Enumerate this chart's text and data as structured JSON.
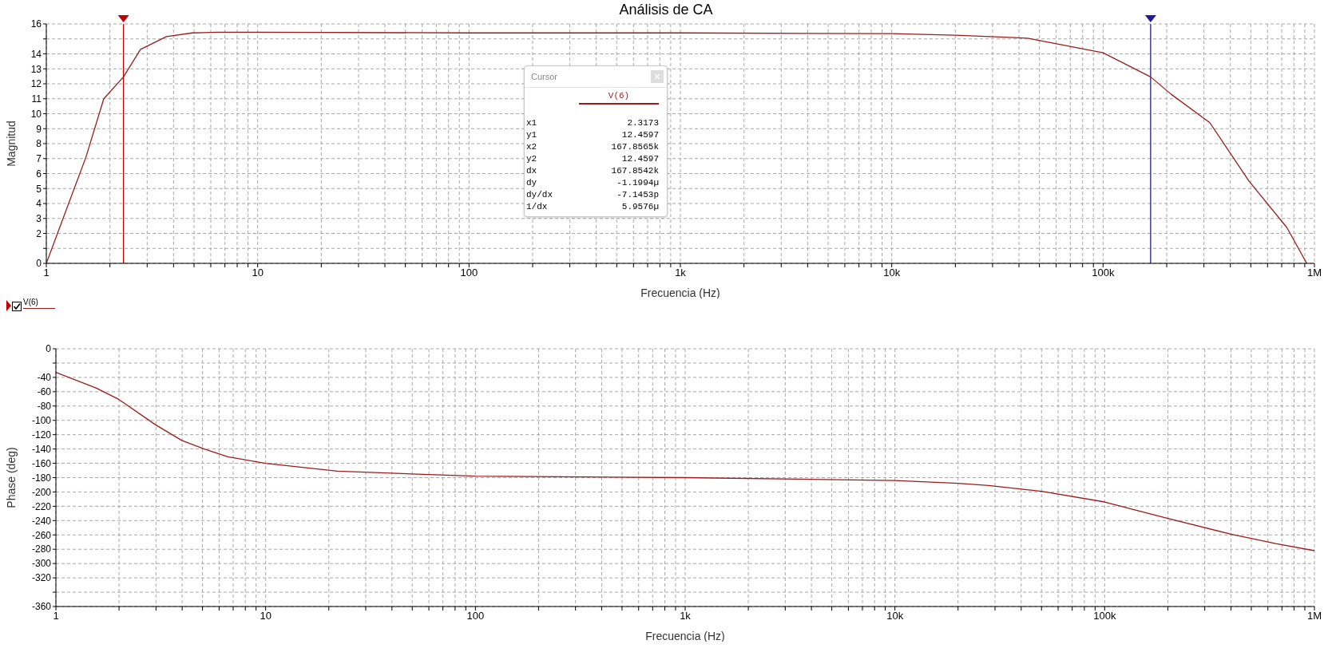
{
  "chart_data": [
    {
      "type": "line",
      "title": "Análisis de CA",
      "xlabel": "Frecuencia (Hz)",
      "ylabel": "Magnitud",
      "log": "x",
      "grid": true,
      "legend": "top",
      "line_style": "solid",
      "marker": "none",
      "xlim": [
        1,
        1000000
      ],
      "xticks": [
        {
          "value": 1,
          "label": "1"
        },
        {
          "value": 2,
          "label": null
        },
        {
          "value": 3,
          "label": null
        },
        {
          "value": 4,
          "label": null
        },
        {
          "value": 5,
          "label": null
        },
        {
          "value": 6,
          "label": null
        },
        {
          "value": 7,
          "label": null
        },
        {
          "value": 8,
          "label": null
        },
        {
          "value": 9,
          "label": null
        },
        {
          "value": 10,
          "label": "10"
        },
        {
          "value": 20,
          "label": null
        },
        {
          "value": 30,
          "label": null
        },
        {
          "value": 40,
          "label": null
        },
        {
          "value": 50,
          "label": null
        },
        {
          "value": 60,
          "label": null
        },
        {
          "value": 70,
          "label": null
        },
        {
          "value": 80,
          "label": null
        },
        {
          "value": 90,
          "label": null
        },
        {
          "value": 100,
          "label": "100"
        },
        {
          "value": 200,
          "label": null
        },
        {
          "value": 300,
          "label": null
        },
        {
          "value": 400,
          "label": null
        },
        {
          "value": 500,
          "label": null
        },
        {
          "value": 600,
          "label": null
        },
        {
          "value": 700,
          "label": null
        },
        {
          "value": 800,
          "label": null
        },
        {
          "value": 900,
          "label": null
        },
        {
          "value": 1000,
          "label": "1k"
        },
        {
          "value": 2000,
          "label": null
        },
        {
          "value": 3000,
          "label": null
        },
        {
          "value": 4000,
          "label": null
        },
        {
          "value": 5000,
          "label": null
        },
        {
          "value": 6000,
          "label": null
        },
        {
          "value": 7000,
          "label": null
        },
        {
          "value": 8000,
          "label": null
        },
        {
          "value": 9000,
          "label": null
        },
        {
          "value": 10000,
          "label": "10k"
        },
        {
          "value": 20000,
          "label": null
        },
        {
          "value": 30000,
          "label": null
        },
        {
          "value": 40000,
          "label": null
        },
        {
          "value": 50000,
          "label": null
        },
        {
          "value": 60000,
          "label": null
        },
        {
          "value": 70000,
          "label": null
        },
        {
          "value": 80000,
          "label": null
        },
        {
          "value": 90000,
          "label": null
        },
        {
          "value": 100000,
          "label": "100k"
        },
        {
          "value": 200000,
          "label": null
        },
        {
          "value": 300000,
          "label": null
        },
        {
          "value": 400000,
          "label": null
        },
        {
          "value": 500000,
          "label": null
        },
        {
          "value": 600000,
          "label": null
        },
        {
          "value": 700000,
          "label": null
        },
        {
          "value": 800000,
          "label": null
        },
        {
          "value": 900000,
          "label": null
        },
        {
          "value": 1000000,
          "label": "1M"
        }
      ],
      "ylim": [
        0,
        16
      ],
      "yticks": [
        0,
        {
          "value": 1,
          "label": null
        },
        2,
        3,
        4,
        5,
        6,
        7,
        8,
        9,
        10,
        11,
        12,
        13,
        14,
        {
          "value": 15,
          "label": null
        },
        16
      ],
      "ref_lines": [
        {
          "axis": "x",
          "value": 2.3173,
          "color": "#c00000"
        },
        {
          "axis": "x",
          "value": 167856.5,
          "color": "#1c1c9c"
        }
      ],
      "annotations": [
        "Cursor",
        "x1",
        "2.3173",
        "y1",
        "12.4597",
        "x2",
        "167.8565k",
        "y2",
        "12.4597",
        "dx",
        "167.8542k",
        "dy",
        "-1.1994µ",
        "dy/dx",
        "-7.1453p",
        "1/dx",
        "5.9576µ"
      ],
      "series": [
        {
          "name": "V(6)",
          "color": "#9b1b1b",
          "x": [
            1,
            1.54,
            1.87,
            2.3173,
            2.79,
            3.7,
            4.9,
            6.5,
            10,
            100,
            1000,
            10000,
            20000,
            43900,
            100000,
            167856.5,
            210000,
            320000,
            490000,
            740000,
            920000
          ],
          "values": [
            0,
            7.1,
            11,
            12.46,
            14.3,
            15.15,
            15.4,
            15.45,
            15.45,
            15.4,
            15.4,
            15.35,
            15.25,
            15.05,
            14.07,
            12.46,
            11.3,
            9.4,
            5.5,
            2.4,
            0
          ]
        }
      ]
    },
    {
      "type": "line",
      "xlabel": "Frecuencia (Hz)",
      "ylabel": "Phase (deg)",
      "log": "x",
      "grid": true,
      "legend": "top left",
      "line_style": "solid",
      "marker": "none",
      "xlim": [
        1,
        1000000
      ],
      "xticks": [
        {
          "value": 1,
          "label": "1"
        },
        {
          "value": 2,
          "label": null
        },
        {
          "value": 3,
          "label": null
        },
        {
          "value": 4,
          "label": null
        },
        {
          "value": 5,
          "label": null
        },
        {
          "value": 6,
          "label": null
        },
        {
          "value": 7,
          "label": null
        },
        {
          "value": 8,
          "label": null
        },
        {
          "value": 9,
          "label": null
        },
        {
          "value": 10,
          "label": "10"
        },
        {
          "value": 20,
          "label": null
        },
        {
          "value": 30,
          "label": null
        },
        {
          "value": 40,
          "label": null
        },
        {
          "value": 50,
          "label": null
        },
        {
          "value": 60,
          "label": null
        },
        {
          "value": 70,
          "label": null
        },
        {
          "value": 80,
          "label": null
        },
        {
          "value": 90,
          "label": null
        },
        {
          "value": 100,
          "label": "100"
        },
        {
          "value": 200,
          "label": null
        },
        {
          "value": 300,
          "label": null
        },
        {
          "value": 400,
          "label": null
        },
        {
          "value": 500,
          "label": null
        },
        {
          "value": 600,
          "label": null
        },
        {
          "value": 700,
          "label": null
        },
        {
          "value": 800,
          "label": null
        },
        {
          "value": 900,
          "label": null
        },
        {
          "value": 1000,
          "label": "1k"
        },
        {
          "value": 2000,
          "label": null
        },
        {
          "value": 3000,
          "label": null
        },
        {
          "value": 4000,
          "label": null
        },
        {
          "value": 5000,
          "label": null
        },
        {
          "value": 6000,
          "label": null
        },
        {
          "value": 7000,
          "label": null
        },
        {
          "value": 8000,
          "label": null
        },
        {
          "value": 9000,
          "label": null
        },
        {
          "value": 10000,
          "label": "10k"
        },
        {
          "value": 20000,
          "label": null
        },
        {
          "value": 30000,
          "label": null
        },
        {
          "value": 40000,
          "label": null
        },
        {
          "value": 50000,
          "label": null
        },
        {
          "value": 60000,
          "label": null
        },
        {
          "value": 70000,
          "label": null
        },
        {
          "value": 80000,
          "label": null
        },
        {
          "value": 90000,
          "label": null
        },
        {
          "value": 100000,
          "label": "100k"
        },
        {
          "value": 200000,
          "label": null
        },
        {
          "value": 300000,
          "label": null
        },
        {
          "value": 400000,
          "label": null
        },
        {
          "value": 500000,
          "label": null
        },
        {
          "value": 600000,
          "label": null
        },
        {
          "value": 700000,
          "label": null
        },
        {
          "value": 800000,
          "label": null
        },
        {
          "value": 900000,
          "label": null
        },
        {
          "value": 1000000,
          "label": "1M"
        }
      ],
      "ylim": [
        -360,
        0
      ],
      "yticks": [
        -360,
        {
          "value": -340,
          "label": null
        },
        -320,
        -300,
        -280,
        -260,
        -240,
        -220,
        -200,
        -180,
        -160,
        -140,
        -120,
        -100,
        -80,
        -60,
        -40,
        {
          "value": -20,
          "label": null
        },
        0
      ],
      "series": [
        {
          "name": "V(6)",
          "color": "#9b1b1b",
          "x": [
            1,
            1.56,
            2,
            2.98,
            3.98,
            5.1,
            6.6,
            10,
            22,
            100,
            1000,
            10000,
            20000,
            28000,
            50000,
            100000,
            200000,
            400000,
            653000,
            1000000
          ],
          "values": [
            -33,
            -55,
            -71,
            -106,
            -128,
            -140,
            -151,
            -160,
            -171,
            -178,
            -180,
            -184,
            -188,
            -191,
            -199,
            -214,
            -237,
            -259,
            -272,
            -282
          ]
        }
      ]
    }
  ]
}
